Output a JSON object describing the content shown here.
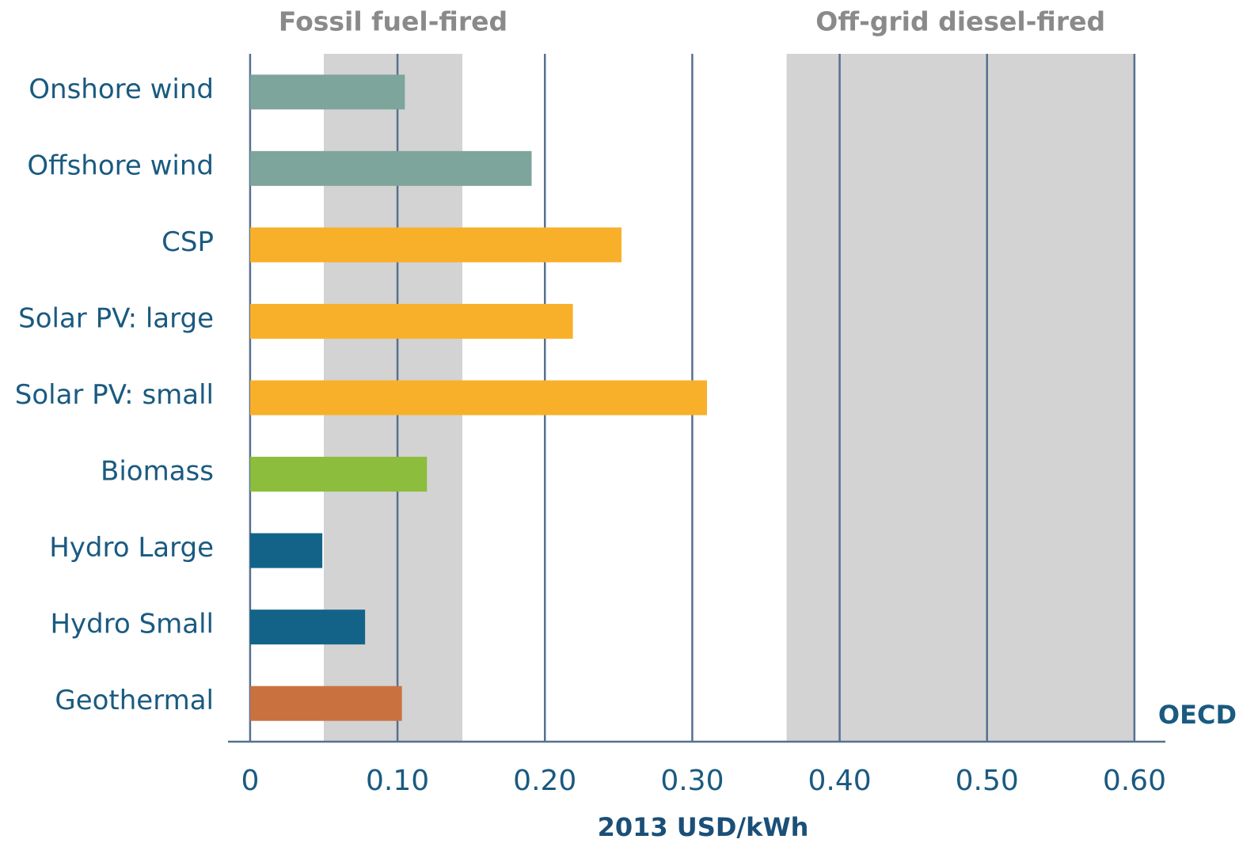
{
  "chart_data": {
    "type": "bar",
    "orientation": "horizontal",
    "categories": [
      "Onshore wind",
      "Offshore wind",
      "CSP",
      "Solar PV: large",
      "Solar PV: small",
      "Biomass",
      "Hydro Large",
      "Hydro Small",
      "Geothermal"
    ],
    "values": [
      0.105,
      0.191,
      0.252,
      0.219,
      0.31,
      0.12,
      0.049,
      0.078,
      0.103
    ],
    "colors": [
      "#7ea59c",
      "#7ea59c",
      "#f8b02b",
      "#f8b02b",
      "#f8b02b",
      "#8cbd3d",
      "#136389",
      "#136389",
      "#c97240"
    ],
    "bands": [
      {
        "label": "Fossil fuel-fired",
        "range": [
          0.05,
          0.144
        ]
      },
      {
        "label": "Off-grid diesel-fired",
        "range": [
          0.364,
          0.6
        ]
      }
    ],
    "band_color": "#d3d3d3",
    "xlim": [
      -0.015,
      0.621
    ],
    "xticks": [
      0,
      {
        "value": 0.1,
        "label": "0.10"
      },
      {
        "value": 0.2,
        "label": "0.20"
      },
      {
        "value": 0.3,
        "label": "0.30"
      },
      {
        "value": 0.4,
        "label": "0.40"
      },
      {
        "value": 0.5,
        "label": "0.50"
      },
      {
        "value": 0.6,
        "label": "0.60"
      }
    ],
    "grid": true,
    "x_label": "2013 USD/kWh",
    "annotation": "OECD"
  }
}
